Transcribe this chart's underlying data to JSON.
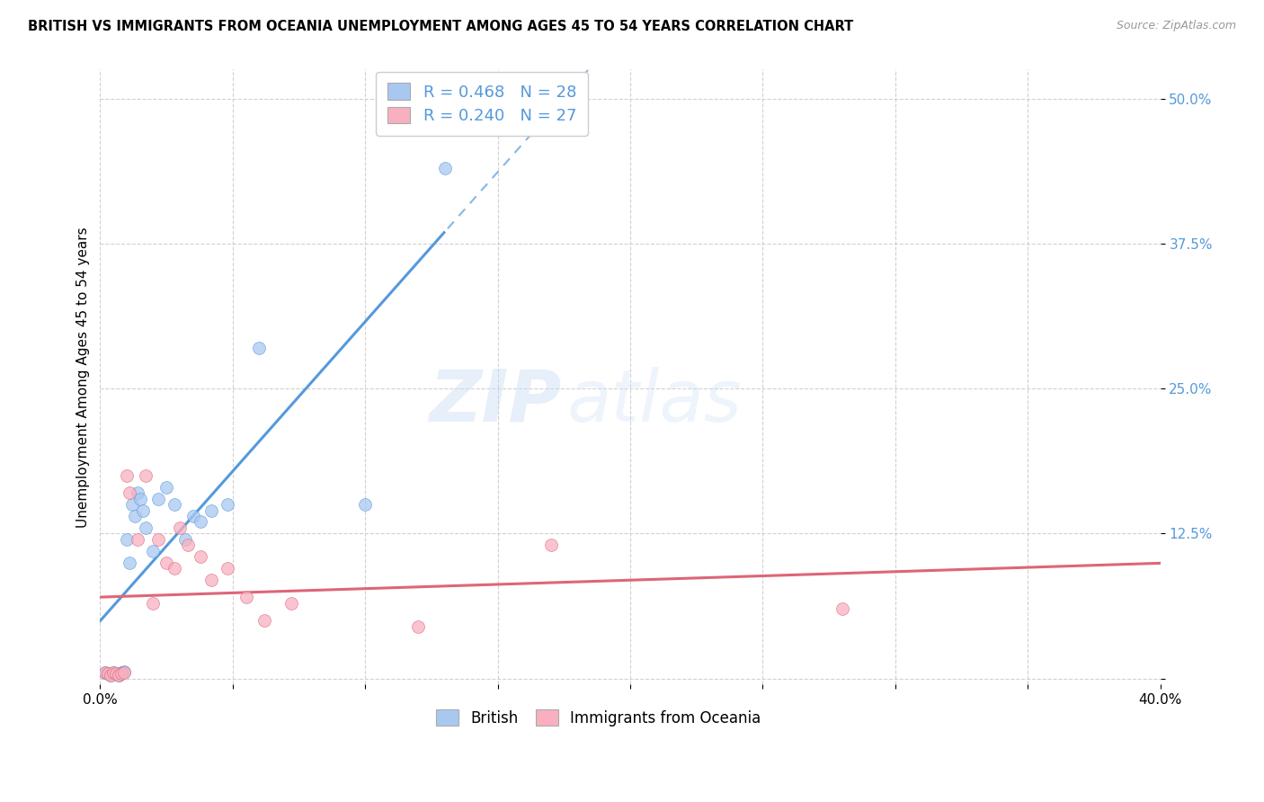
{
  "title": "BRITISH VS IMMIGRANTS FROM OCEANIA UNEMPLOYMENT AMONG AGES 45 TO 54 YEARS CORRELATION CHART",
  "source": "Source: ZipAtlas.com",
  "ylabel": "Unemployment Among Ages 45 to 54 years",
  "xlim": [
    0.0,
    0.4
  ],
  "ylim": [
    -0.005,
    0.525
  ],
  "xticks": [
    0.0,
    0.05,
    0.1,
    0.15,
    0.2,
    0.25,
    0.3,
    0.35,
    0.4
  ],
  "yticks": [
    0.0,
    0.125,
    0.25,
    0.375,
    0.5
  ],
  "ytick_labels": [
    "",
    "12.5%",
    "25.0%",
    "37.5%",
    "50.0%"
  ],
  "xtick_labels": [
    "0.0%",
    "",
    "",
    "",
    "",
    "",
    "",
    "",
    "40.0%"
  ],
  "british_R": 0.468,
  "british_N": 28,
  "oceania_R": 0.24,
  "oceania_N": 27,
  "british_color": "#A8C8F0",
  "oceania_color": "#F8B0C0",
  "british_line_color": "#5599DD",
  "oceania_line_color": "#DD6677",
  "bg_color": "#ffffff",
  "grid_color": "#cccccc",
  "axis_label_color": "#5599DD",
  "watermark_zip": "ZIP",
  "watermark_atlas": "atlas",
  "marker_size": 100,
  "british_x": [
    0.002,
    0.003,
    0.004,
    0.005,
    0.006,
    0.007,
    0.008,
    0.009,
    0.01,
    0.011,
    0.012,
    0.013,
    0.014,
    0.015,
    0.016,
    0.017,
    0.02,
    0.022,
    0.025,
    0.028,
    0.032,
    0.035,
    0.038,
    0.042,
    0.048,
    0.06,
    0.1,
    0.13
  ],
  "british_y": [
    0.005,
    0.004,
    0.003,
    0.005,
    0.004,
    0.003,
    0.005,
    0.006,
    0.12,
    0.1,
    0.15,
    0.14,
    0.16,
    0.155,
    0.145,
    0.13,
    0.11,
    0.155,
    0.165,
    0.15,
    0.12,
    0.14,
    0.135,
    0.145,
    0.15,
    0.285,
    0.15,
    0.44
  ],
  "oceania_x": [
    0.002,
    0.003,
    0.004,
    0.005,
    0.006,
    0.007,
    0.008,
    0.009,
    0.01,
    0.011,
    0.014,
    0.017,
    0.02,
    0.022,
    0.025,
    0.028,
    0.03,
    0.033,
    0.038,
    0.042,
    0.048,
    0.055,
    0.062,
    0.072,
    0.12,
    0.17,
    0.28
  ],
  "oceania_y": [
    0.005,
    0.004,
    0.003,
    0.005,
    0.004,
    0.003,
    0.004,
    0.005,
    0.175,
    0.16,
    0.12,
    0.175,
    0.065,
    0.12,
    0.1,
    0.095,
    0.13,
    0.115,
    0.105,
    0.085,
    0.095,
    0.07,
    0.05,
    0.065,
    0.045,
    0.115,
    0.06
  ]
}
